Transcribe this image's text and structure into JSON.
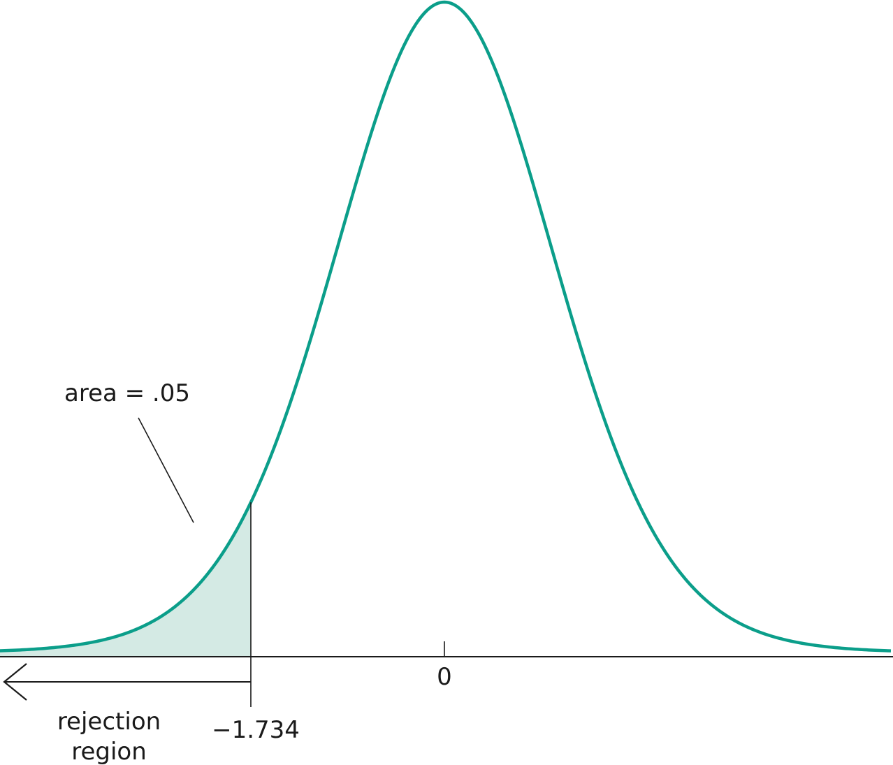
{
  "chart_data": {
    "type": "area",
    "distribution": "t",
    "xlim": [
      -4.0,
      4.0
    ],
    "critical_value": -1.734,
    "center_value": 0,
    "tick_labels": {
      "center": "0",
      "critical": "−1.734"
    },
    "tail_area": 0.05,
    "annotations": {
      "area_label": "area = .05",
      "region_label_line1": "rejection",
      "region_label_line2": "region"
    },
    "colors": {
      "curve": "#0b9e8a",
      "shade": "#d4eae4",
      "ink": "#1a1a1a"
    },
    "grid": false,
    "legend": "none"
  }
}
